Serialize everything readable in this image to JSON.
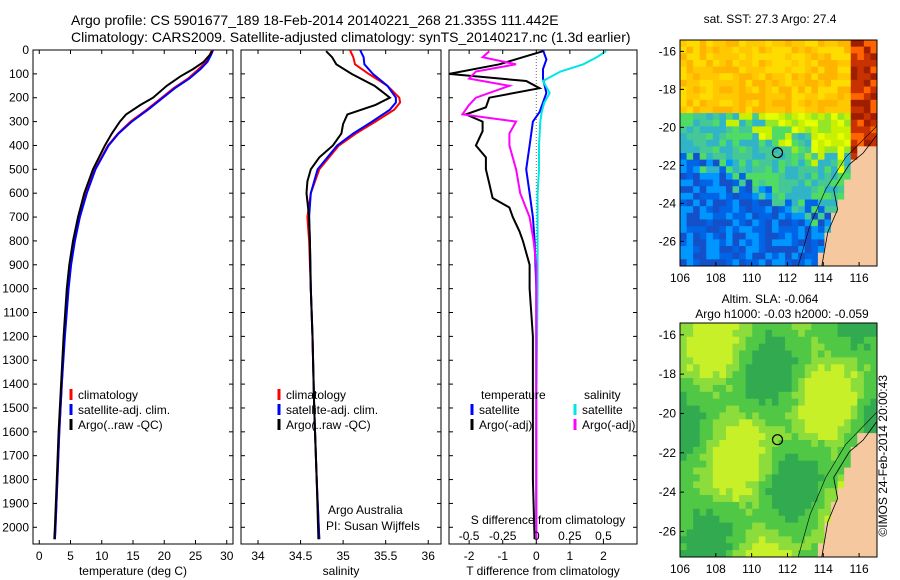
{
  "header": {
    "line1": "Argo profile: CS 5901677_189 18-Feb-2014 20140221_268 21.335S 111.442E",
    "line2": "Climatology: CARS2009. Satellite-adjusted climatology: synTS_20140217.nc (1.3d earlier)"
  },
  "stamp": "©IMOS 24-Feb-2014 20:00:43",
  "colors": {
    "clim": "#ff0000",
    "sat": "#0000ff",
    "argo": "#000000",
    "sal_sat": "#00e5e5",
    "sal_argo": "#ff00ff",
    "land": "#f5c8a0"
  },
  "chart_data": [
    {
      "id": "temperature",
      "type": "line",
      "xlabel": "temperature (deg C)",
      "xlim": [
        -1,
        31
      ],
      "xticks": [
        0,
        5,
        10,
        15,
        20,
        25,
        30
      ],
      "ylim": [
        2070,
        0
      ],
      "yticks": [
        0,
        100,
        200,
        300,
        400,
        500,
        600,
        700,
        800,
        900,
        1000,
        1100,
        1200,
        1300,
        1400,
        1500,
        1600,
        1700,
        1800,
        1900,
        2000
      ],
      "legend": [
        "climatology",
        "satellite-adj. clim.",
        "Argo(..raw -QC)"
      ],
      "series": [
        {
          "name": "climatology",
          "color": "clim",
          "depth": [
            0,
            20,
            50,
            80,
            120,
            160,
            200,
            250,
            300,
            350,
            400,
            500,
            600,
            700,
            800,
            900,
            1000,
            1200,
            1400,
            1600,
            1800,
            2000,
            2050
          ],
          "values": [
            27.6,
            27.3,
            26.7,
            25.5,
            23.8,
            21.5,
            19.6,
            17.2,
            14.6,
            12.6,
            11.0,
            8.9,
            7.5,
            6.4,
            5.6,
            5.0,
            4.6,
            4.0,
            3.6,
            3.2,
            2.9,
            2.6,
            2.5
          ]
        },
        {
          "name": "satellite-adj. clim.",
          "color": "sat",
          "depth": [
            0,
            20,
            50,
            80,
            120,
            160,
            200,
            250,
            300,
            350,
            400,
            500,
            600,
            700,
            800,
            900,
            1000,
            1200,
            1400,
            1600,
            1800,
            2000,
            2050
          ],
          "values": [
            27.8,
            27.5,
            26.9,
            25.8,
            24.0,
            21.7,
            19.8,
            17.4,
            14.8,
            12.7,
            11.1,
            9.0,
            7.6,
            6.5,
            5.7,
            5.1,
            4.7,
            4.1,
            3.6,
            3.2,
            2.9,
            2.6,
            2.5
          ]
        },
        {
          "name": "Argo(..raw -QC)",
          "color": "argo",
          "depth": [
            5,
            20,
            50,
            80,
            110,
            150,
            200,
            230,
            270,
            300,
            350,
            400,
            500,
            600,
            700,
            800,
            900,
            1000,
            1200,
            1400,
            1600,
            1800,
            2000,
            2050
          ],
          "values": [
            27.7,
            27.3,
            26.3,
            24.6,
            22.6,
            20.4,
            18.2,
            16.2,
            13.9,
            12.9,
            11.6,
            10.5,
            8.6,
            7.2,
            6.2,
            5.4,
            4.8,
            4.4,
            3.9,
            3.5,
            3.1,
            2.8,
            2.5,
            2.4
          ]
        }
      ]
    },
    {
      "id": "salinity",
      "type": "line",
      "xlabel": "salinity",
      "xlim": [
        33.8,
        36.15
      ],
      "xticks": [
        34,
        34.5,
        35,
        35.5,
        36
      ],
      "ylim": [
        2070,
        0
      ],
      "legend": [
        "climatology",
        "satellite-adj. clim.",
        "Argo(..raw -QC)"
      ],
      "annotation": [
        "Argo Australia",
        "PI: Susan Wijffels"
      ],
      "series": [
        {
          "name": "climatology",
          "color": "clim",
          "depth": [
            0,
            30,
            60,
            100,
            150,
            200,
            220,
            250,
            300,
            350,
            400,
            500,
            600,
            700,
            800,
            1000,
            1200,
            1500,
            1800,
            2050
          ],
          "values": [
            35.08,
            35.12,
            35.14,
            35.3,
            35.52,
            35.66,
            35.67,
            35.6,
            35.38,
            35.15,
            34.95,
            34.72,
            34.62,
            34.58,
            34.6,
            34.62,
            34.64,
            34.66,
            34.69,
            34.72
          ]
        },
        {
          "name": "satellite-adj. clim.",
          "color": "sat",
          "depth": [
            0,
            30,
            60,
            100,
            150,
            200,
            220,
            250,
            300,
            350,
            400,
            500,
            600,
            700,
            800,
            1000,
            1200,
            1500,
            1800,
            2050
          ],
          "values": [
            35.2,
            35.24,
            35.25,
            35.35,
            35.52,
            35.62,
            35.62,
            35.55,
            35.34,
            35.12,
            34.93,
            34.7,
            34.62,
            34.6,
            34.61,
            34.62,
            34.64,
            34.66,
            34.69,
            34.72
          ]
        },
        {
          "name": "Argo(..raw -QC)",
          "color": "argo",
          "depth": [
            5,
            30,
            60,
            100,
            150,
            200,
            230,
            270,
            310,
            350,
            400,
            450,
            500,
            550,
            600,
            700,
            800,
            1000,
            1200,
            1500,
            1800,
            2050
          ],
          "values": [
            34.8,
            34.87,
            34.92,
            35.1,
            35.37,
            35.55,
            35.38,
            35.05,
            35.0,
            34.98,
            34.88,
            34.72,
            34.62,
            34.58,
            34.57,
            34.6,
            34.61,
            34.62,
            34.64,
            34.66,
            34.69,
            34.71
          ]
        }
      ]
    },
    {
      "id": "differences",
      "type": "line",
      "xlabel": "T difference from climatology",
      "xlabel_top": "S difference from climatology",
      "xlim": [
        -2.6,
        3
      ],
      "xticks": [
        -2,
        -1,
        0,
        1,
        2
      ],
      "xticks_top": [
        -0.5,
        -0.25,
        0,
        0.25,
        0.5
      ],
      "ylim": [
        2070,
        0
      ],
      "legend_left": {
        "title": "temperature",
        "items": [
          "satellite",
          "Argo(-adj)"
        ]
      },
      "legend_right": {
        "title": "salinity",
        "items": [
          "satellite",
          "Argo(-adj)"
        ]
      },
      "series": [
        {
          "name": "temperature satellite",
          "color": "sat",
          "depth": [
            0,
            40,
            80,
            120,
            180,
            220,
            260,
            300,
            400,
            500,
            600,
            700,
            800,
            1000,
            1500,
            2050
          ],
          "values": [
            0.2,
            0.3,
            0.2,
            0.2,
            0.3,
            0.2,
            0.1,
            -0.1,
            -0.2,
            -0.3,
            -0.2,
            -0.1,
            -0.05,
            0,
            0,
            0
          ]
        },
        {
          "name": "temperature Argo(-adj)",
          "color": "argo",
          "depth": [
            5,
            30,
            60,
            100,
            130,
            160,
            200,
            240,
            270,
            300,
            340,
            400,
            450,
            500,
            560,
            620,
            660,
            700,
            760,
            800,
            900,
            1000,
            1200,
            1400,
            1600,
            1800,
            2050
          ],
          "values": [
            0.2,
            -0.4,
            -1.1,
            -2.6,
            -0.3,
            0.1,
            -1.4,
            -1.5,
            -2.1,
            -1.6,
            -1.6,
            -1.8,
            -1.5,
            -1.5,
            -1.4,
            -1.3,
            -0.8,
            -0.7,
            -0.5,
            -0.4,
            -0.2,
            -0.2,
            -0.1,
            -0.1,
            -0.1,
            -0.1,
            -0.05
          ]
        },
        {
          "name": "salinity satellite",
          "color": "sal_sat",
          "depth": [
            5,
            30,
            60,
            90,
            130,
            180,
            220,
            260,
            300,
            400,
            500,
            600,
            700,
            800,
            1000,
            1500,
            2050
          ],
          "values": [
            0.52,
            0.45,
            0.35,
            0.18,
            0.05,
            0.1,
            0.06,
            0.04,
            0.03,
            0.02,
            0.02,
            0.01,
            0.01,
            0.01,
            0.01,
            0.0,
            0.0
          ]
        },
        {
          "name": "salinity Argo(-adj)",
          "color": "sal_argo",
          "depth": [
            5,
            30,
            60,
            90,
            120,
            150,
            200,
            230,
            270,
            300,
            350,
            400,
            500,
            600,
            700,
            800,
            900,
            1000,
            1500,
            2050
          ],
          "values": [
            -0.35,
            -0.4,
            -0.15,
            -0.45,
            -0.5,
            -0.2,
            -0.45,
            -0.5,
            -0.55,
            -0.15,
            -0.2,
            -0.2,
            -0.15,
            -0.12,
            -0.05,
            -0.02,
            0,
            0,
            0,
            0
          ]
        }
      ]
    }
  ],
  "maps": {
    "top": {
      "title": "sat. SST: 27.3 Argo: 27.4",
      "xticks": [
        106,
        108,
        110,
        112,
        114,
        116
      ],
      "yticks": [
        -16,
        -18,
        -20,
        -22,
        -24,
        -26
      ]
    },
    "bottom": {
      "title1": "Altim. SLA: -0.064",
      "title2": "Argo h1000: -0.03 h2000: -0.059",
      "xticks": [
        106,
        108,
        110,
        112,
        114,
        116
      ],
      "yticks": [
        -16,
        -18,
        -20,
        -22,
        -24,
        -26
      ]
    }
  }
}
